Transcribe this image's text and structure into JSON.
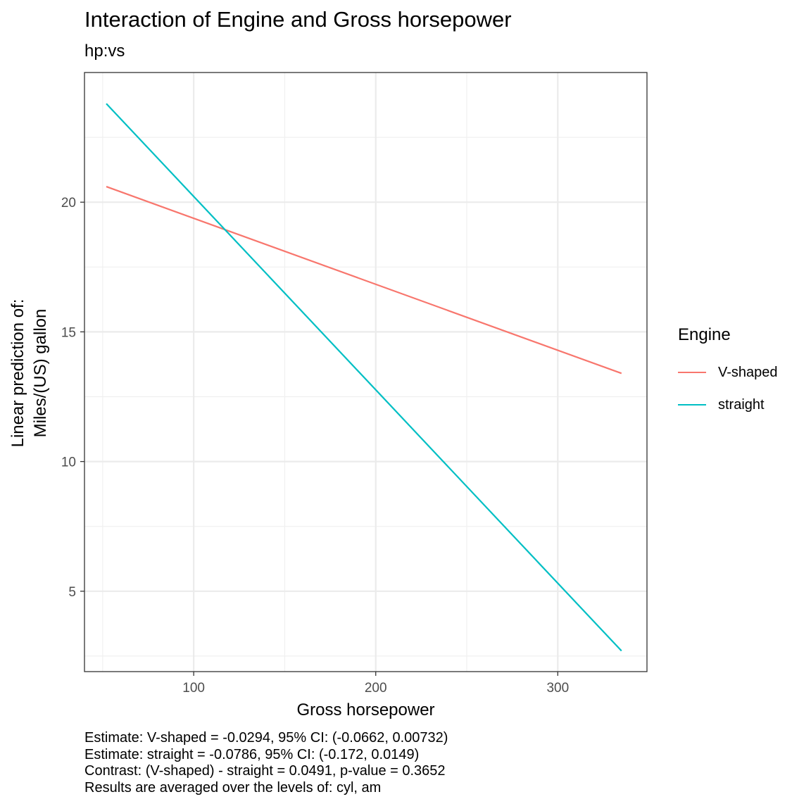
{
  "chart_data": {
    "type": "line",
    "title": "Interaction of Engine and Gross horsepower",
    "subtitle": "hp:vs",
    "xlabel": "Gross horsepower",
    "ylabel": [
      "Linear prediction of:",
      "Miles/(US) gallon"
    ],
    "xlim": [
      40,
      349
    ],
    "ylim": [
      1.9,
      25.0
    ],
    "xticks": [
      100,
      200,
      300
    ],
    "yticks": [
      5,
      10,
      15,
      20
    ],
    "grid": true,
    "legend_title": "Engine",
    "legend_position": "right",
    "series": [
      {
        "name": "V-shaped",
        "color": "#F8766D",
        "x": [
          52,
          335
        ],
        "y": [
          20.6,
          13.4
        ]
      },
      {
        "name": "straight",
        "color": "#00BFC4",
        "x": [
          52,
          335
        ],
        "y": [
          23.8,
          2.7
        ]
      }
    ],
    "caption": [
      "Estimate: V-shaped = -0.0294, 95% CI: (-0.0662, 0.00732)",
      "Estimate: straight = -0.0786, 95% CI: (-0.172, 0.0149)",
      "Contrast: (V-shaped) - straight = 0.0491, p-value = 0.3652",
      "Results are averaged over the levels of: cyl, am"
    ]
  }
}
